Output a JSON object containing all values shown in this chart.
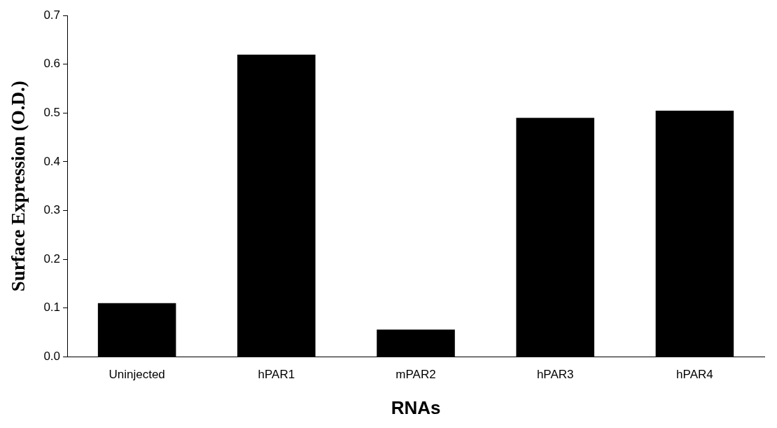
{
  "chart_data": {
    "type": "bar",
    "xlabel": "RNAs",
    "ylabel": "Surface Expression (O.D.)",
    "categories": [
      "Uninjected",
      "hPAR1",
      "mPAR2",
      "hPAR3",
      "hPAR4"
    ],
    "values": [
      0.11,
      0.62,
      0.056,
      0.49,
      0.505
    ],
    "color": "#000000",
    "ylim": [
      0,
      0.7
    ],
    "yticks": [
      {
        "value": 0,
        "label": "0.0"
      },
      {
        "value": 0.1,
        "label": "0.1"
      },
      {
        "value": 0.2,
        "label": "0.2"
      },
      {
        "value": 0.3,
        "label": "0.3"
      },
      {
        "value": 0.4,
        "label": "0.4"
      },
      {
        "value": 0.5,
        "label": "0.5"
      },
      {
        "value": 0.6,
        "label": "0.6"
      },
      {
        "value": 0.7,
        "label": "0.7"
      }
    ],
    "grid": false,
    "legend": false
  }
}
